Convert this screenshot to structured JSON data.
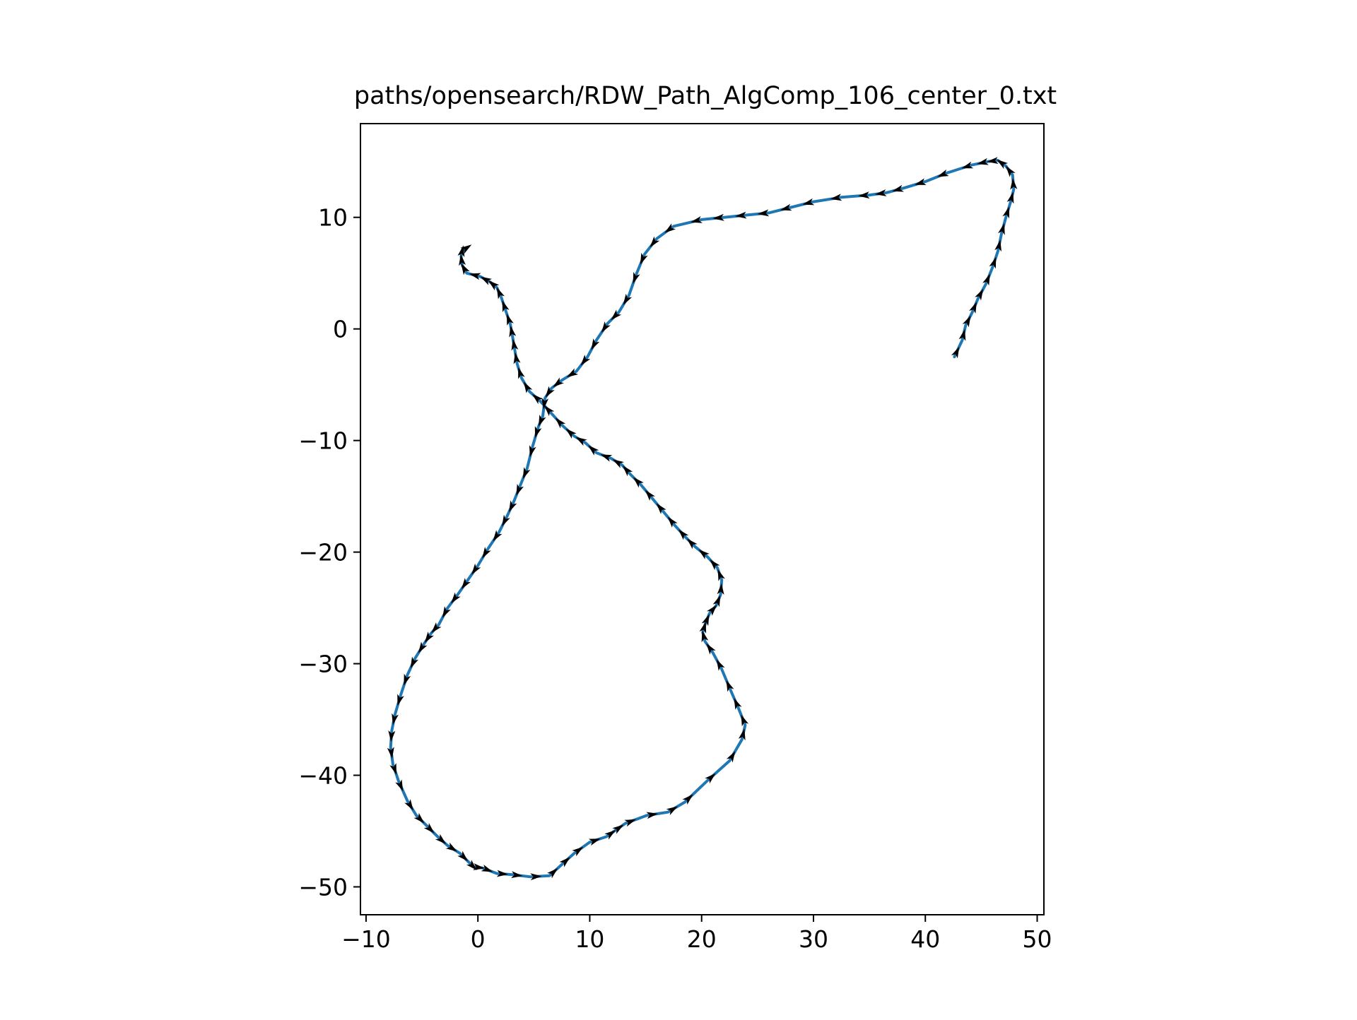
{
  "chart_data": {
    "type": "line",
    "title": "paths/opensearch/RDW_Path_AlgComp_106_center_0.txt",
    "xlabel": "",
    "ylabel": "",
    "xlim": [
      -10.5,
      50.6
    ],
    "ylim": [
      -52.5,
      18.4
    ],
    "xticks": [
      -10,
      0,
      10,
      20,
      30,
      40,
      50
    ],
    "xtick_labels": [
      "−10",
      "0",
      "10",
      "20",
      "30",
      "40",
      "50"
    ],
    "yticks": [
      -50,
      -40,
      -30,
      -20,
      -10,
      0,
      10
    ],
    "ytick_labels": [
      "−50",
      "−40",
      "−30",
      "−20",
      "−10",
      "0",
      "10"
    ],
    "grid": false,
    "legend": "none",
    "line_color": "#1f77b4",
    "arrow_color": "#000000",
    "series": [
      {
        "x": [
          42.6,
          43.3,
          43.6,
          44.2,
          44.7,
          45.4,
          46.0,
          46.5,
          46.8,
          47.2,
          47.6,
          47.9,
          47.8,
          47.2,
          46.5,
          45.6,
          44.2,
          42.0,
          40.0,
          38.0,
          36.5,
          35.0,
          32.5,
          30.0,
          28.0,
          26.0,
          24.0,
          22.0,
          20.0,
          17.5,
          16.0,
          14.9,
          14.2,
          13.5,
          12.6,
          11.6,
          10.6,
          9.8,
          8.8,
          7.5,
          6.6,
          6.0,
          5.8,
          5.4,
          4.9,
          4.4,
          3.8,
          3.2,
          2.6,
          1.9,
          0.9,
          0.0,
          -0.9,
          -1.8,
          -2.7,
          -3.5,
          -4.2,
          -4.8,
          -5.6,
          -6.3,
          -6.9,
          -7.4,
          -7.7,
          -7.8,
          -7.6,
          -7.1,
          -6.3,
          -5.5,
          -4.6,
          -3.6,
          -2.7,
          -1.6,
          -0.8,
          -0.4,
          0.4,
          1.7,
          3.0,
          4.7,
          6.4,
          7.5,
          8.6,
          10.0,
          11.5,
          12.2,
          13.2,
          15.1,
          17.0,
          18.5,
          20.5,
          22.5,
          23.6,
          23.9,
          23.3,
          22.6,
          21.8,
          21.0,
          20.3,
          20.1,
          20.3,
          20.7,
          21.3,
          21.7,
          21.8,
          21.4,
          20.5,
          19.4,
          18.6,
          17.6,
          16.6,
          15.6,
          14.6,
          13.6,
          12.9,
          11.9,
          10.6,
          9.6,
          8.6,
          7.6,
          6.6,
          5.6,
          4.6,
          3.9,
          3.5,
          3.3,
          3.1,
          2.9,
          2.5,
          2.1,
          1.7,
          1.1,
          0.2,
          -1.0,
          -1.4,
          -1.5,
          -1.4,
          -1.1
        ],
        "y": [
          -2.5,
          -1.0,
          0.3,
          1.5,
          2.7,
          4.0,
          5.5,
          7.0,
          8.5,
          10.0,
          11.3,
          12.5,
          13.8,
          14.6,
          15.1,
          15.0,
          14.7,
          14.0,
          13.2,
          12.6,
          12.2,
          12.0,
          11.8,
          11.4,
          10.9,
          10.4,
          10.2,
          10.0,
          9.8,
          9.2,
          8.1,
          6.7,
          5.0,
          3.0,
          1.5,
          0.5,
          -1.0,
          -2.5,
          -3.8,
          -4.6,
          -5.3,
          -6.2,
          -7.8,
          -8.8,
          -10.5,
          -12.5,
          -14.0,
          -15.5,
          -16.8,
          -18.2,
          -19.7,
          -21.2,
          -22.5,
          -23.8,
          -25.0,
          -26.5,
          -27.3,
          -28.2,
          -29.5,
          -31.0,
          -32.8,
          -34.5,
          -36.0,
          -37.5,
          -39.0,
          -40.5,
          -42.3,
          -43.6,
          -44.5,
          -45.5,
          -46.3,
          -47.0,
          -47.8,
          -48.2,
          -48.3,
          -48.8,
          -48.9,
          -49.1,
          -49.0,
          -48.0,
          -47.0,
          -46.0,
          -45.5,
          -45.0,
          -44.3,
          -43.6,
          -43.3,
          -42.4,
          -40.5,
          -38.7,
          -36.8,
          -35.5,
          -34.0,
          -32.4,
          -30.5,
          -29.0,
          -28.0,
          -27.2,
          -26.5,
          -25.5,
          -24.8,
          -23.8,
          -22.5,
          -21.4,
          -20.4,
          -19.5,
          -18.7,
          -17.6,
          -16.4,
          -15.2,
          -14.0,
          -13.0,
          -12.2,
          -11.6,
          -11.1,
          -10.2,
          -9.6,
          -8.7,
          -7.6,
          -6.5,
          -5.6,
          -4.4,
          -3.1,
          -1.9,
          -0.7,
          0.4,
          1.6,
          2.8,
          3.7,
          4.2,
          4.7,
          5.0,
          5.7,
          6.5,
          7.0,
          7.2
        ]
      }
    ]
  }
}
